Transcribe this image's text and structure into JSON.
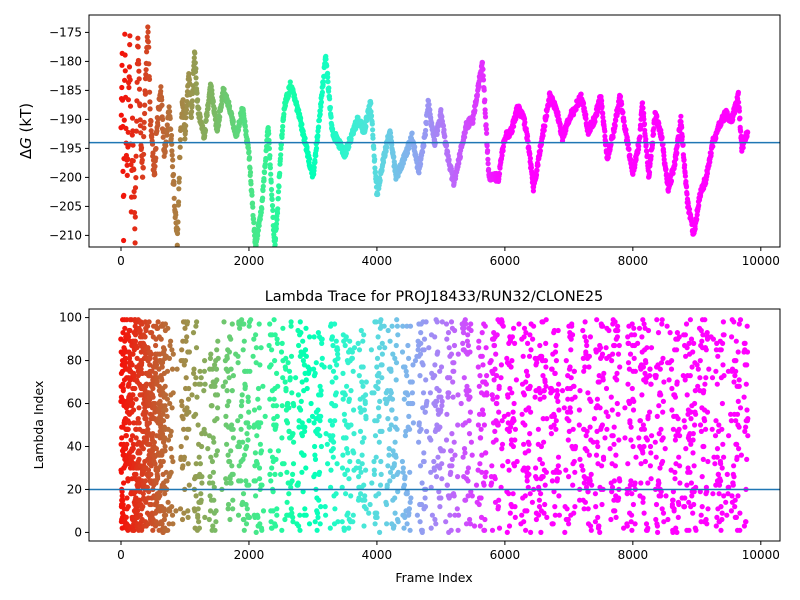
{
  "chart_data": [
    {
      "type": "scatter",
      "title": "",
      "xlabel": "",
      "ylabel": "ΔG (kT)",
      "ylabel_delta": "Δ",
      "ylabel_var": "G",
      "ylabel_unit": " (kT)",
      "xlim": [
        -500,
        10300
      ],
      "ylim": [
        -212,
        -172
      ],
      "xticks": [
        0,
        2000,
        4000,
        6000,
        8000,
        10000
      ],
      "yticks": [
        -175,
        -180,
        -185,
        -190,
        -195,
        -200,
        -205,
        -210
      ],
      "hline": -194,
      "hline_color": "#1f77b4",
      "colormap": "rainbow",
      "marker_size": 2.6,
      "x_max": 9800,
      "trace_anchors": [
        [
          0,
          -190
        ],
        [
          20,
          -180
        ],
        [
          40,
          -210
        ],
        [
          60,
          -175
        ],
        [
          80,
          -195
        ],
        [
          100,
          -200
        ],
        [
          120,
          -185
        ],
        [
          140,
          -176
        ],
        [
          160,
          -205
        ],
        [
          180,
          -190
        ],
        [
          220,
          -210
        ],
        [
          260,
          -176
        ],
        [
          300,
          -190
        ],
        [
          340,
          -200
        ],
        [
          380,
          -185
        ],
        [
          420,
          -174
        ],
        [
          460,
          -190
        ],
        [
          520,
          -200
        ],
        [
          560,
          -192
        ],
        [
          620,
          -185
        ],
        [
          680,
          -196
        ],
        [
          760,
          -188
        ],
        [
          840,
          -205
        ],
        [
          880,
          -211
        ],
        [
          920,
          -196
        ],
        [
          960,
          -186
        ],
        [
          1000,
          -193
        ],
        [
          1060,
          -182
        ],
        [
          1100,
          -190
        ],
        [
          1150,
          -178
        ],
        [
          1200,
          -188
        ],
        [
          1300,
          -193
        ],
        [
          1400,
          -184
        ],
        [
          1500,
          -192
        ],
        [
          1600,
          -185
        ],
        [
          1700,
          -188
        ],
        [
          1800,
          -193
        ],
        [
          1900,
          -188
        ],
        [
          2000,
          -196
        ],
        [
          2100,
          -212
        ],
        [
          2200,
          -205
        ],
        [
          2300,
          -191
        ],
        [
          2400,
          -212
        ],
        [
          2450,
          -205
        ],
        [
          2500,
          -195
        ],
        [
          2550,
          -188
        ],
        [
          2650,
          -184
        ],
        [
          2800,
          -190
        ],
        [
          2900,
          -195
        ],
        [
          3000,
          -200
        ],
        [
          3100,
          -190
        ],
        [
          3200,
          -179
        ],
        [
          3300,
          -192
        ],
        [
          3500,
          -196
        ],
        [
          3700,
          -190
        ],
        [
          3800,
          -192
        ],
        [
          3900,
          -187
        ],
        [
          4000,
          -203
        ],
        [
          4100,
          -197
        ],
        [
          4200,
          -192
        ],
        [
          4300,
          -200
        ],
        [
          4450,
          -196
        ],
        [
          4550,
          -193
        ],
        [
          4650,
          -199
        ],
        [
          4750,
          -193
        ],
        [
          4800,
          -187
        ],
        [
          4900,
          -194
        ],
        [
          5000,
          -189
        ],
        [
          5100,
          -196
        ],
        [
          5200,
          -201
        ],
        [
          5300,
          -196
        ],
        [
          5400,
          -191
        ],
        [
          5500,
          -190
        ],
        [
          5650,
          -180
        ],
        [
          5750,
          -200
        ],
        [
          5900,
          -200
        ],
        [
          6000,
          -193
        ],
        [
          6100,
          -192
        ],
        [
          6200,
          -188
        ],
        [
          6300,
          -190
        ],
        [
          6350,
          -193
        ],
        [
          6450,
          -202
        ],
        [
          6550,
          -195
        ],
        [
          6700,
          -186
        ],
        [
          6800,
          -188
        ],
        [
          6900,
          -193
        ],
        [
          7000,
          -190
        ],
        [
          7100,
          -188
        ],
        [
          7200,
          -186
        ],
        [
          7300,
          -192
        ],
        [
          7400,
          -190
        ],
        [
          7500,
          -186
        ],
        [
          7600,
          -197
        ],
        [
          7700,
          -192
        ],
        [
          7800,
          -186
        ],
        [
          7900,
          -193
        ],
        [
          8000,
          -199
        ],
        [
          8100,
          -194
        ],
        [
          8150,
          -187
        ],
        [
          8250,
          -200
        ],
        [
          8350,
          -189
        ],
        [
          8450,
          -193
        ],
        [
          8550,
          -202
        ],
        [
          8650,
          -198
        ],
        [
          8750,
          -190
        ],
        [
          8850,
          -204
        ],
        [
          8950,
          -210
        ],
        [
          9050,
          -203
        ],
        [
          9150,
          -200
        ],
        [
          9250,
          -194
        ],
        [
          9350,
          -191
        ],
        [
          9450,
          -189
        ],
        [
          9550,
          -190
        ],
        [
          9650,
          -186
        ],
        [
          9700,
          -195
        ],
        [
          9800,
          -192
        ]
      ]
    },
    {
      "type": "scatter",
      "title": "Lambda Trace for PROJ18433/RUN32/CLONE25",
      "xlabel": "Frame Index",
      "ylabel": "Lambda Index",
      "xlim": [
        -500,
        10300
      ],
      "ylim": [
        -4,
        104
      ],
      "xticks": [
        0,
        2000,
        4000,
        6000,
        8000,
        10000
      ],
      "yticks": [
        0,
        20,
        40,
        60,
        80,
        100
      ],
      "hline": 20,
      "hline_color": "#1f77b4",
      "colormap": "rainbow",
      "marker_size": 2.6,
      "x_max": 9800,
      "lambda_range": [
        0,
        99
      ]
    }
  ]
}
